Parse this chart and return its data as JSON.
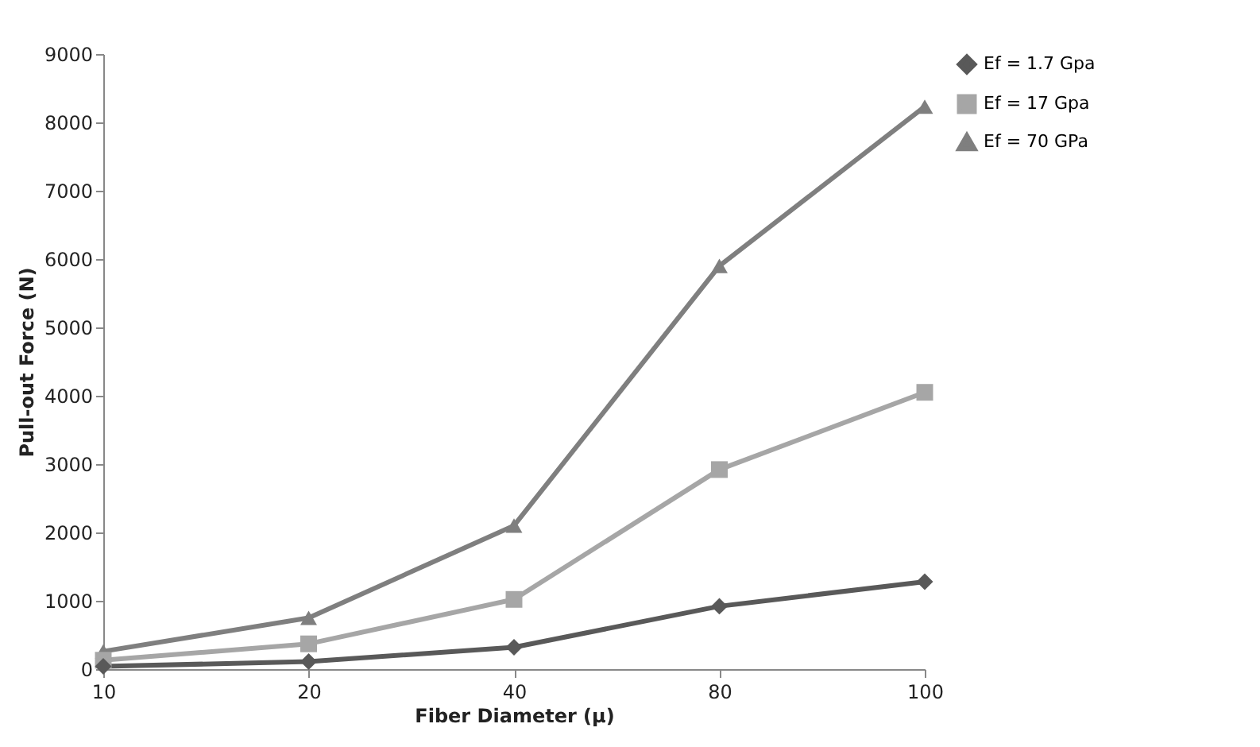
{
  "chart_data": {
    "type": "line",
    "xlabel": "Fiber Diameter (µ)",
    "ylabel": "Pull-out Force (N)",
    "categories": [
      "10",
      "20",
      "40",
      "80",
      "100"
    ],
    "series": [
      {
        "name": "Ef = 1.7 Gpa",
        "color": "#595959",
        "marker": "diamond",
        "values": [
          40,
          110,
          320,
          920,
          1280
        ]
      },
      {
        "name": "Ef = 17 Gpa",
        "color": "#a6a6a6",
        "marker": "square",
        "values": [
          130,
          370,
          1020,
          2920,
          4050
        ]
      },
      {
        "name": "Ef = 70 GPa",
        "color": "#7f7f7f",
        "marker": "triangle",
        "values": [
          260,
          750,
          2100,
          5900,
          8230
        ]
      }
    ],
    "ylim": [
      0,
      9000
    ],
    "yticks": [
      0,
      1000,
      2000,
      3000,
      4000,
      5000,
      6000,
      7000,
      8000,
      9000
    ],
    "grid": false,
    "legend": "right"
  }
}
